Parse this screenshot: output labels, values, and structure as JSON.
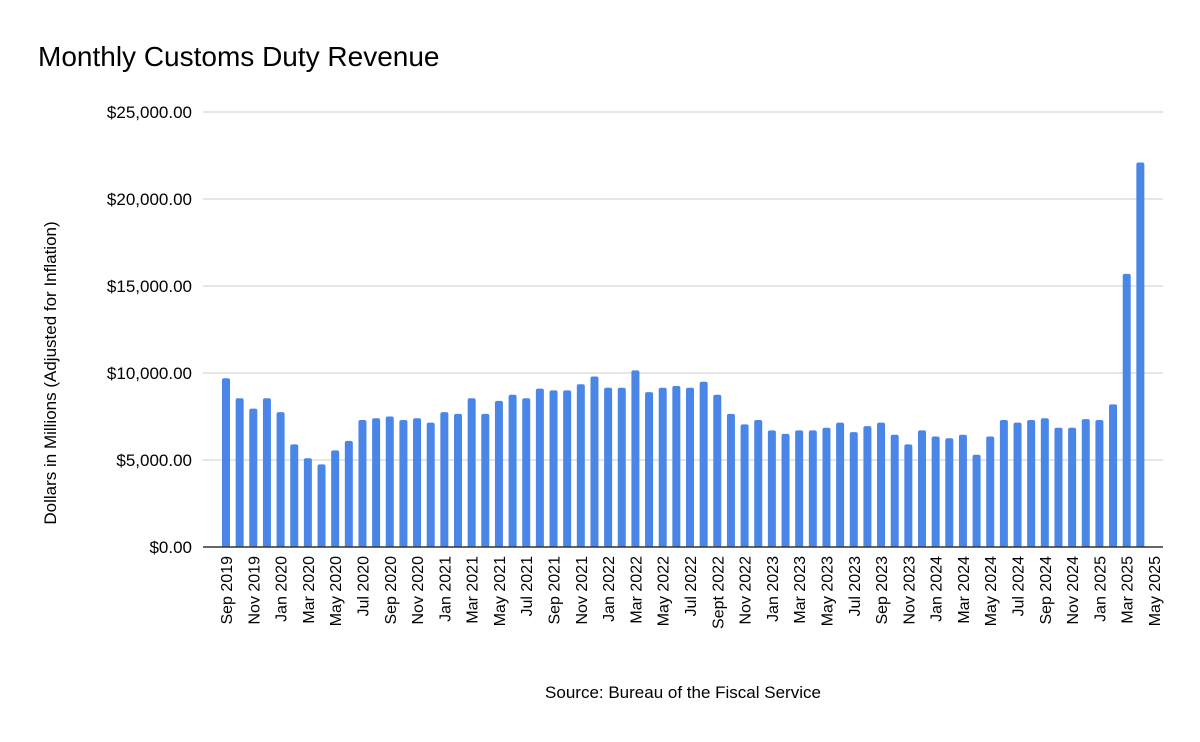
{
  "chart_data": {
    "type": "bar",
    "title": "Monthly Customs Duty Revenue",
    "ylabel": "Dollars in Millions (Adjusted for Inflation)",
    "xlabel": "",
    "source": "Source: Bureau of the Fiscal Service",
    "ylim": [
      0,
      25000
    ],
    "y_ticks": [
      "$0.00",
      "$5,000.00",
      "$10,000.00",
      "$15,000.00",
      "$20,000.00",
      "$25,000.00"
    ],
    "y_tick_values": [
      0,
      5000,
      10000,
      15000,
      20000,
      25000
    ],
    "grid": true,
    "legend": "none",
    "bar_color": "#4a86e8",
    "categories": [
      "Sep 2019",
      "Oct 2019",
      "Nov 2019",
      "Dec 2019",
      "Jan 2020",
      "Feb 2020",
      "Mar 2020",
      "Apr 2020",
      "May 2020",
      "Jun 2020",
      "Jul 2020",
      "Aug 2020",
      "Sep 2020",
      "Oct 2020",
      "Nov 2020",
      "Dec 2020",
      "Jan 2021",
      "Feb 2021",
      "Mar 2021",
      "Apr 2021",
      "May 2021",
      "Jun 2021",
      "Jul 2021",
      "Aug 2021",
      "Sep 2021",
      "Oct 2021",
      "Nov 2021",
      "Dec 2021",
      "Jan 2022",
      "Feb 2022",
      "Mar 2022",
      "Apr 2022",
      "May 2022",
      "Jun 2022",
      "Jul 2022",
      "Aug 2022",
      "Sept 2022",
      "Oct 2022",
      "Nov 2022",
      "Dec 2022",
      "Jan 2023",
      "Feb 2023",
      "Mar 2023",
      "Apr 2023",
      "May 2023",
      "Jun 2023",
      "Jul 2023",
      "Aug 2023",
      "Sep 2023",
      "Oct 2023",
      "Nov 2023",
      "Dec 2023",
      "Jan 2024",
      "Feb 2024",
      "Mar 2024",
      "Apr 2024",
      "May 2024",
      "Jun 2024",
      "Jul 2024",
      "Aug 2024",
      "Sep 2024",
      "Oct 2024",
      "Nov 2024",
      "Dec 2024",
      "Jan 2025",
      "Feb 2025",
      "Mar 2025",
      "Apr 2025",
      "May 2025"
    ],
    "x_tick_labels_shown": [
      "Sep 2019",
      "Nov 2019",
      "Jan 2020",
      "Mar 2020",
      "May 2020",
      "Jul 2020",
      "Sep 2020",
      "Nov 2020",
      "Jan 2021",
      "Mar 2021",
      "May 2021",
      "Jul 2021",
      "Sep 2021",
      "Nov 2021",
      "Jan 2022",
      "Mar 2022",
      "May 2022",
      "Jul 2022",
      "Sept 2022",
      "Nov 2022",
      "Jan 2023",
      "Mar 2023",
      "May 2023",
      "Jul 2023",
      "Sep 2023",
      "Nov 2023",
      "Jan 2024",
      "Mar 2024",
      "May 2024",
      "Jul 2024",
      "Sep 2024",
      "Nov 2024",
      "Jan 2025",
      "Mar 2025",
      "May 2025"
    ],
    "values": [
      9700,
      8550,
      7950,
      8550,
      7750,
      5900,
      5100,
      4750,
      5550,
      6100,
      7300,
      7400,
      7500,
      7300,
      7400,
      7150,
      7750,
      7650,
      8550,
      7650,
      8400,
      8750,
      8550,
      9100,
      9000,
      9000,
      9350,
      9800,
      9150,
      9150,
      10150,
      8900,
      9150,
      9250,
      9150,
      9500,
      8750,
      7650,
      7050,
      7300,
      6700,
      6500,
      6700,
      6700,
      6850,
      7150,
      6600,
      6950,
      7150,
      6450,
      5900,
      6700,
      6350,
      6250,
      6450,
      5300,
      6350,
      7300,
      7150,
      7300,
      7400,
      6850,
      6850,
      7350,
      7300,
      8200,
      15700,
      22100,
      null
    ]
  }
}
